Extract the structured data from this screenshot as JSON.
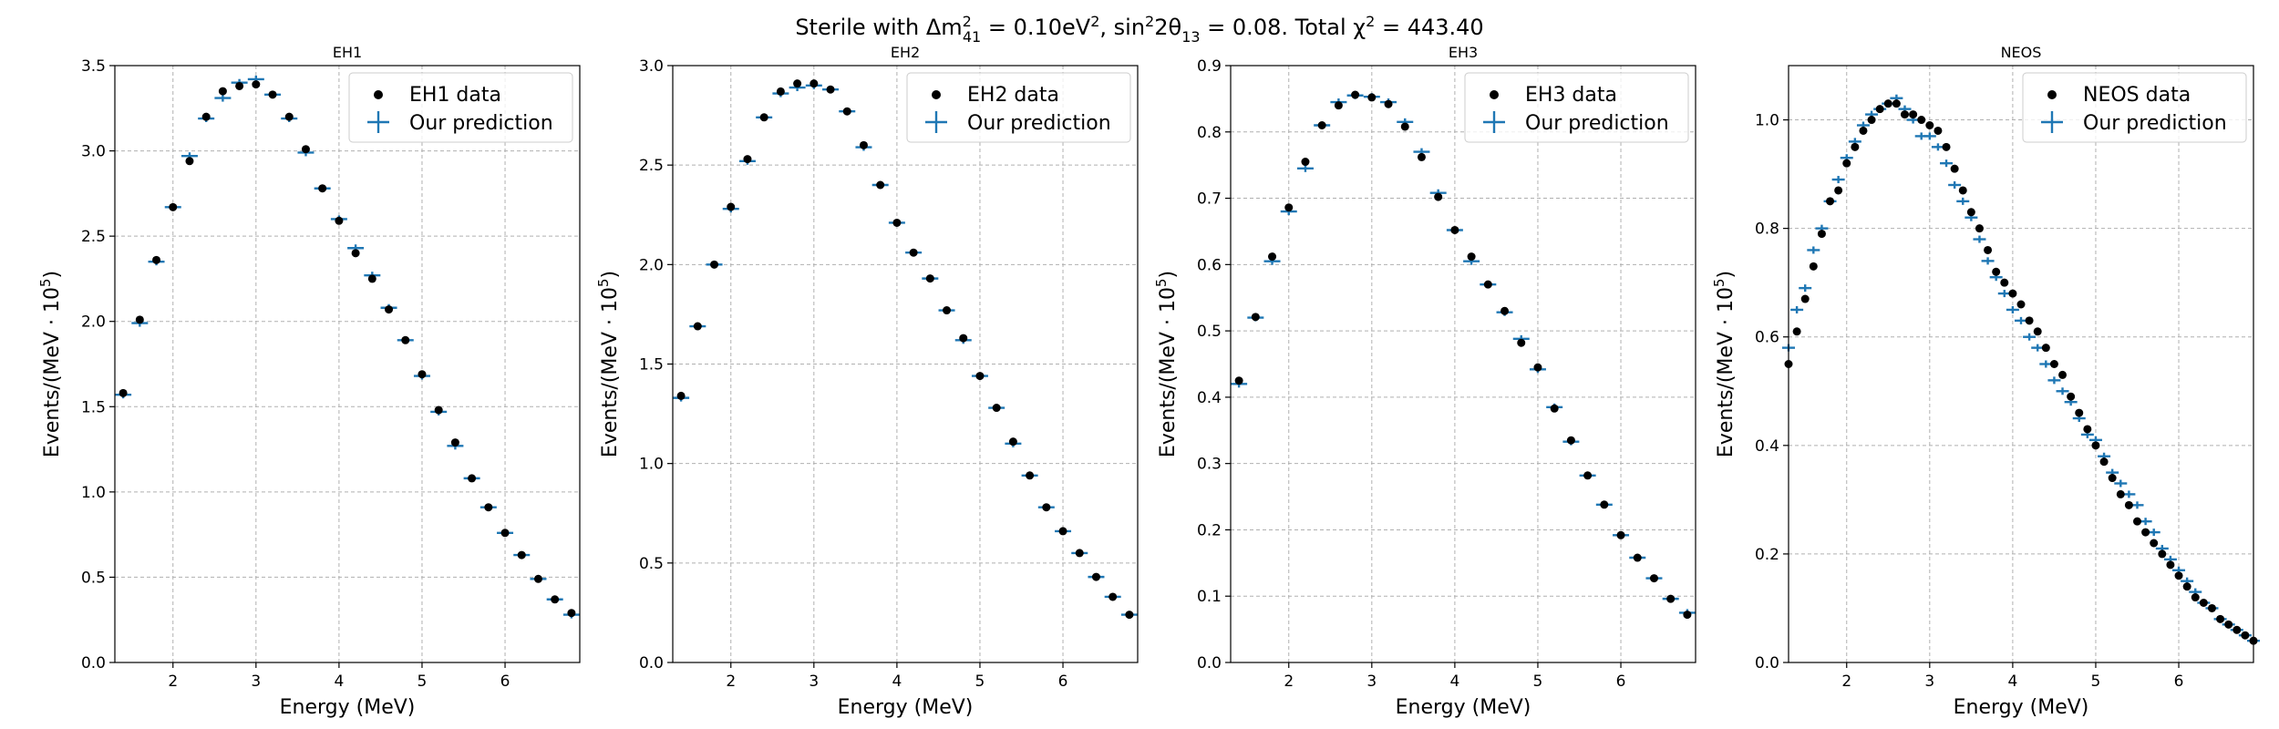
{
  "figure": {
    "title_parts": [
      "Sterile with Δm",
      "2",
      "41",
      " = 0.10eV",
      "2",
      ", sin",
      "2",
      "2θ",
      "13",
      " = 0.08. Total χ",
      "2",
      " = 443.40"
    ]
  },
  "colors": {
    "data": "#000000",
    "prediction": "#1f77b4"
  },
  "chart_data": [
    {
      "type": "scatter",
      "title": "EH1",
      "xlabel": "Energy (MeV)",
      "ylabel_parts": [
        "Events/(MeV · 10",
        "5",
        ")"
      ],
      "xlim": [
        1.3,
        6.9
      ],
      "ylim": [
        0,
        3.5
      ],
      "xticks": [
        2,
        3,
        4,
        5,
        6
      ],
      "xtick_labels": [
        "2",
        "3",
        "4",
        "5",
        "6"
      ],
      "yticks": [
        0,
        0.5,
        1.0,
        1.5,
        2.0,
        2.5,
        3.0,
        3.5
      ],
      "ytick_labels": [
        "0.0",
        "0.5",
        "1.0",
        "1.5",
        "2.0",
        "2.5",
        "3.0",
        "3.5"
      ],
      "legend": {
        "placement": "top-right",
        "data_label": "EH1 data",
        "prediction_label": "Our prediction"
      },
      "x": [
        1.4,
        1.6,
        1.8,
        2.0,
        2.2,
        2.4,
        2.6,
        2.8,
        3.0,
        3.2,
        3.4,
        3.6,
        3.8,
        4.0,
        4.2,
        4.4,
        4.6,
        4.8,
        5.0,
        5.2,
        5.4,
        5.6,
        5.8,
        6.0,
        6.2,
        6.4,
        6.6,
        6.8
      ],
      "series": [
        {
          "name": "EH1 data",
          "marker": "dot",
          "values": [
            1.58,
            2.01,
            2.36,
            2.67,
            2.94,
            3.2,
            3.35,
            3.38,
            3.39,
            3.33,
            3.2,
            3.01,
            2.78,
            2.59,
            2.4,
            2.25,
            2.07,
            1.89,
            1.69,
            1.48,
            1.29,
            1.08,
            0.91,
            0.76,
            0.63,
            0.49,
            0.37,
            0.29
          ]
        },
        {
          "name": "Our prediction",
          "marker": "cross",
          "values": [
            1.57,
            1.99,
            2.35,
            2.67,
            2.97,
            3.19,
            3.31,
            3.4,
            3.42,
            3.33,
            3.19,
            2.99,
            2.78,
            2.6,
            2.43,
            2.27,
            2.08,
            1.89,
            1.68,
            1.47,
            1.27,
            1.08,
            0.91,
            0.76,
            0.63,
            0.49,
            0.37,
            0.28
          ]
        }
      ]
    },
    {
      "type": "scatter",
      "title": "EH2",
      "xlabel": "Energy (MeV)",
      "ylabel_parts": [
        "Events/(MeV · 10",
        "5",
        ")"
      ],
      "xlim": [
        1.3,
        6.9
      ],
      "ylim": [
        0,
        3.0
      ],
      "xticks": [
        2,
        3,
        4,
        5,
        6
      ],
      "xtick_labels": [
        "2",
        "3",
        "4",
        "5",
        "6"
      ],
      "yticks": [
        0,
        0.5,
        1.0,
        1.5,
        2.0,
        2.5,
        3.0
      ],
      "ytick_labels": [
        "0.0",
        "0.5",
        "1.0",
        "1.5",
        "2.0",
        "2.5",
        "3.0"
      ],
      "legend": {
        "placement": "top-right",
        "data_label": "EH2 data",
        "prediction_label": "Our prediction"
      },
      "x": [
        1.4,
        1.6,
        1.8,
        2.0,
        2.2,
        2.4,
        2.6,
        2.8,
        3.0,
        3.2,
        3.4,
        3.6,
        3.8,
        4.0,
        4.2,
        4.4,
        4.6,
        4.8,
        5.0,
        5.2,
        5.4,
        5.6,
        5.8,
        6.0,
        6.2,
        6.4,
        6.6,
        6.8
      ],
      "series": [
        {
          "name": "EH2 data",
          "marker": "dot",
          "values": [
            1.34,
            1.69,
            2.0,
            2.29,
            2.53,
            2.74,
            2.87,
            2.91,
            2.91,
            2.88,
            2.77,
            2.6,
            2.4,
            2.21,
            2.06,
            1.93,
            1.77,
            1.63,
            1.44,
            1.28,
            1.11,
            0.94,
            0.78,
            0.66,
            0.55,
            0.43,
            0.33,
            0.24
          ]
        },
        {
          "name": "Our prediction",
          "marker": "cross",
          "values": [
            1.33,
            1.69,
            2.0,
            2.28,
            2.52,
            2.74,
            2.86,
            2.89,
            2.9,
            2.88,
            2.77,
            2.59,
            2.4,
            2.21,
            2.06,
            1.93,
            1.77,
            1.62,
            1.44,
            1.28,
            1.1,
            0.94,
            0.78,
            0.66,
            0.55,
            0.43,
            0.33,
            0.24
          ]
        }
      ]
    },
    {
      "type": "scatter",
      "title": "EH3",
      "xlabel": "Energy (MeV)",
      "ylabel_parts": [
        "Events/(MeV · 10",
        "5",
        ")"
      ],
      "xlim": [
        1.3,
        6.9
      ],
      "ylim": [
        0,
        0.9
      ],
      "xticks": [
        2,
        3,
        4,
        5,
        6
      ],
      "xtick_labels": [
        "2",
        "3",
        "4",
        "5",
        "6"
      ],
      "yticks": [
        0,
        0.1,
        0.2,
        0.3,
        0.4,
        0.5,
        0.6,
        0.7,
        0.8,
        0.9
      ],
      "ytick_labels": [
        "0.0",
        "0.1",
        "0.2",
        "0.3",
        "0.4",
        "0.5",
        "0.6",
        "0.7",
        "0.8",
        "0.9"
      ],
      "legend": {
        "placement": "top-right",
        "data_label": "EH3 data",
        "prediction_label": "Our prediction"
      },
      "x": [
        1.4,
        1.6,
        1.8,
        2.0,
        2.2,
        2.4,
        2.6,
        2.8,
        3.0,
        3.2,
        3.4,
        3.6,
        3.8,
        4.0,
        4.2,
        4.4,
        4.6,
        4.8,
        5.0,
        5.2,
        5.4,
        5.6,
        5.8,
        6.0,
        6.2,
        6.4,
        6.6,
        6.8
      ],
      "series": [
        {
          "name": "EH3 data",
          "marker": "dot",
          "values": [
            0.425,
            0.521,
            0.612,
            0.686,
            0.755,
            0.81,
            0.84,
            0.856,
            0.852,
            0.842,
            0.808,
            0.762,
            0.702,
            0.652,
            0.612,
            0.57,
            0.53,
            0.482,
            0.445,
            0.383,
            0.335,
            0.282,
            0.238,
            0.192,
            0.158,
            0.127,
            0.096,
            0.072
          ]
        },
        {
          "name": "Our prediction",
          "marker": "cross",
          "values": [
            0.42,
            0.52,
            0.605,
            0.68,
            0.745,
            0.81,
            0.845,
            0.855,
            0.853,
            0.845,
            0.815,
            0.77,
            0.708,
            0.652,
            0.605,
            0.57,
            0.528,
            0.488,
            0.442,
            0.385,
            0.333,
            0.282,
            0.238,
            0.192,
            0.158,
            0.127,
            0.096,
            0.075
          ]
        }
      ]
    },
    {
      "type": "scatter",
      "title": "NEOS",
      "xlabel": "Energy (MeV)",
      "ylabel_parts": [
        "Events/(MeV · 10",
        "5",
        ")"
      ],
      "xlim": [
        1.3,
        6.9
      ],
      "ylim": [
        0,
        1.1
      ],
      "xticks": [
        2,
        3,
        4,
        5,
        6
      ],
      "xtick_labels": [
        "2",
        "3",
        "4",
        "5",
        "6"
      ],
      "yticks": [
        0,
        0.2,
        0.4,
        0.6,
        0.8,
        1.0
      ],
      "ytick_labels": [
        "0.0",
        "0.2",
        "0.4",
        "0.6",
        "0.8",
        "1.0"
      ],
      "legend": {
        "placement": "top-right",
        "data_label": "NEOS data",
        "prediction_label": "Our prediction"
      },
      "x": [
        1.3,
        1.4,
        1.5,
        1.6,
        1.7,
        1.8,
        1.9,
        2.0,
        2.1,
        2.2,
        2.3,
        2.4,
        2.5,
        2.6,
        2.7,
        2.8,
        2.9,
        3.0,
        3.1,
        3.2,
        3.3,
        3.4,
        3.5,
        3.6,
        3.7,
        3.8,
        3.9,
        4.0,
        4.1,
        4.2,
        4.3,
        4.4,
        4.5,
        4.6,
        4.7,
        4.8,
        4.9,
        5.0,
        5.1,
        5.2,
        5.3,
        5.4,
        5.5,
        5.6,
        5.7,
        5.8,
        5.9,
        6.0,
        6.1,
        6.2,
        6.3,
        6.4,
        6.5,
        6.6,
        6.7,
        6.8,
        6.9
      ],
      "series": [
        {
          "name": "NEOS data",
          "marker": "dot",
          "values": [
            0.55,
            0.61,
            0.67,
            0.73,
            0.79,
            0.85,
            0.87,
            0.92,
            0.95,
            0.98,
            1.0,
            1.02,
            1.03,
            1.03,
            1.01,
            1.01,
            1.0,
            0.99,
            0.98,
            0.95,
            0.91,
            0.87,
            0.83,
            0.8,
            0.76,
            0.72,
            0.7,
            0.68,
            0.66,
            0.63,
            0.61,
            0.58,
            0.55,
            0.53,
            0.49,
            0.46,
            0.43,
            0.4,
            0.37,
            0.34,
            0.31,
            0.29,
            0.26,
            0.24,
            0.22,
            0.2,
            0.18,
            0.16,
            0.14,
            0.12,
            0.11,
            0.1,
            0.08,
            0.07,
            0.06,
            0.05,
            0.04
          ]
        },
        {
          "name": "Our prediction",
          "marker": "cross",
          "values": [
            0.58,
            0.65,
            0.69,
            0.76,
            0.8,
            0.85,
            0.89,
            0.93,
            0.96,
            0.99,
            1.01,
            1.02,
            1.03,
            1.04,
            1.02,
            1.0,
            0.97,
            0.97,
            0.95,
            0.92,
            0.88,
            0.85,
            0.82,
            0.78,
            0.74,
            0.71,
            0.68,
            0.65,
            0.63,
            0.6,
            0.58,
            0.55,
            0.52,
            0.5,
            0.48,
            0.45,
            0.42,
            0.41,
            0.38,
            0.35,
            0.33,
            0.31,
            0.29,
            0.26,
            0.24,
            0.21,
            0.19,
            0.17,
            0.15,
            0.13,
            0.11,
            0.1,
            0.08,
            0.07,
            0.06,
            0.05,
            0.04
          ]
        }
      ]
    }
  ]
}
